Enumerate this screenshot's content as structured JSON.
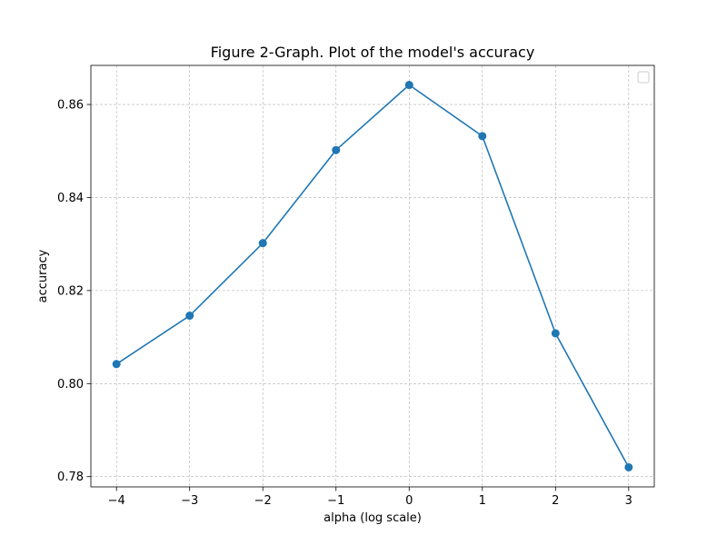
{
  "chart_data": {
    "type": "line",
    "title": "Figure 2-Graph. Plot of the model's accuracy",
    "xlabel": "alpha (log scale)",
    "ylabel": "accuracy",
    "xlim": [
      -4.35,
      3.35
    ],
    "ylim": [
      0.7778,
      0.8684
    ],
    "x_ticks": [
      -4,
      -3,
      -2,
      -1,
      0,
      1,
      2,
      3
    ],
    "x_tick_labels": [
      "−4",
      "−3",
      "−2",
      "−1",
      "0",
      "1",
      "2",
      "3"
    ],
    "y_ticks": [
      0.78,
      0.8,
      0.82,
      0.84,
      0.86
    ],
    "y_tick_labels": [
      "0.78",
      "0.80",
      "0.82",
      "0.84",
      "0.86"
    ],
    "grid": true,
    "legend": "top-right (empty)",
    "series": [
      {
        "color": "#1f77b4",
        "marker": "circle",
        "x": [
          -4,
          -3,
          -2,
          -1,
          0,
          1,
          2,
          3
        ],
        "y": [
          0.8042,
          0.8146,
          0.8302,
          0.8502,
          0.8642,
          0.8532,
          0.8108,
          0.782
        ]
      }
    ]
  }
}
